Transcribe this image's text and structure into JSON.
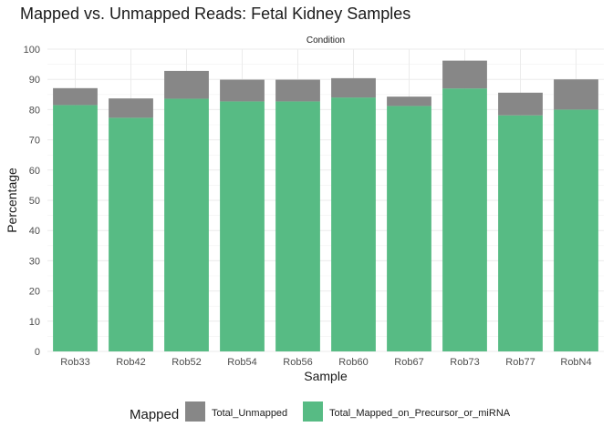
{
  "chart_data": {
    "type": "bar",
    "stacked": true,
    "title": "Mapped vs. Unmapped Reads: Fetal Kidney Samples",
    "facet_label": "Condition",
    "xlabel": "Sample",
    "ylabel": "Percentage",
    "ylim": [
      0,
      100
    ],
    "yticks": [
      0,
      10,
      20,
      30,
      40,
      50,
      60,
      70,
      80,
      90,
      100
    ],
    "grid": true,
    "legend_placement": "bottom",
    "legend_title": "Mapped",
    "categories": [
      "Rob33",
      "Rob42",
      "Rob52",
      "Rob54",
      "Rob56",
      "Rob60",
      "Rob67",
      "Rob73",
      "Rob77",
      "RobN4"
    ],
    "series": [
      {
        "name": "Total_Mapped_on_Precursor_or_miRNA",
        "color": "#57bb84",
        "values": [
          81.5,
          77.3,
          83.6,
          82.7,
          82.7,
          84.0,
          81.2,
          87.0,
          78.1,
          80.0
        ]
      },
      {
        "name": "Total_Unmapped",
        "color": "#878787",
        "values": [
          5.6,
          6.4,
          9.2,
          7.2,
          7.2,
          6.4,
          3.1,
          9.2,
          7.5,
          10.0
        ]
      }
    ],
    "legend_order": [
      "Total_Unmapped",
      "Total_Mapped_on_Precursor_or_miRNA"
    ]
  }
}
